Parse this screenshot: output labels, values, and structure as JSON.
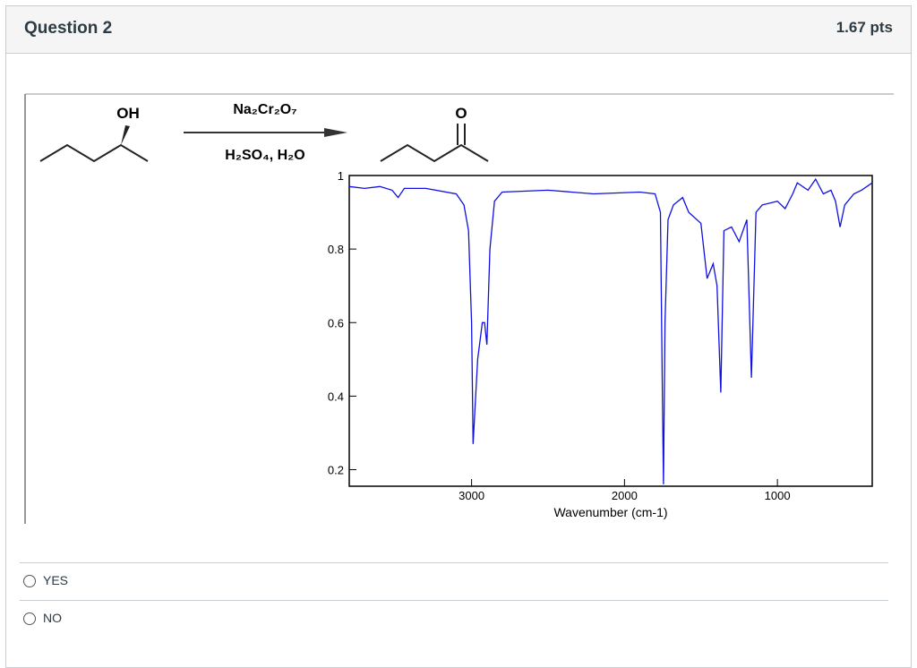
{
  "header": {
    "title": "Question 2",
    "points": "1.67 pts"
  },
  "reaction": {
    "reactant_label": "OH",
    "reagent_above": "Na₂Cr₂O₇",
    "reagent_below": "H₂SO₄, H₂O",
    "product_label": "O"
  },
  "chart_data": {
    "type": "line",
    "x_label": "Wavenumber (cm-1)",
    "color": "#1010e0",
    "x": [
      3800,
      3700,
      3600,
      3520,
      3480,
      3440,
      3300,
      3100,
      3050,
      3020,
      3000,
      2990,
      2960,
      2930,
      2915,
      2900,
      2880,
      2850,
      2800,
      2500,
      2200,
      1900,
      1800,
      1765,
      1752,
      1745,
      1735,
      1715,
      1680,
      1620,
      1580,
      1500,
      1460,
      1420,
      1395,
      1370,
      1350,
      1300,
      1250,
      1200,
      1170,
      1140,
      1100,
      1000,
      950,
      900,
      870,
      800,
      750,
      700,
      650,
      620,
      590,
      560,
      500,
      450,
      380
    ],
    "values": [
      0.97,
      0.965,
      0.97,
      0.96,
      0.94,
      0.965,
      0.965,
      0.95,
      0.92,
      0.85,
      0.6,
      0.27,
      0.5,
      0.6,
      0.6,
      0.54,
      0.8,
      0.93,
      0.955,
      0.96,
      0.95,
      0.955,
      0.95,
      0.9,
      0.4,
      0.16,
      0.6,
      0.88,
      0.92,
      0.94,
      0.9,
      0.87,
      0.72,
      0.76,
      0.7,
      0.41,
      0.85,
      0.86,
      0.82,
      0.88,
      0.45,
      0.9,
      0.92,
      0.93,
      0.91,
      0.95,
      0.98,
      0.96,
      0.99,
      0.95,
      0.96,
      0.93,
      0.86,
      0.92,
      0.95,
      0.96,
      0.98
    ],
    "xlim": [
      3800,
      380
    ],
    "ylim": [
      0.155,
      1
    ],
    "xticks": [
      3000,
      2000,
      1000
    ],
    "yticks": [
      0.2,
      0.4,
      0.6,
      0.8,
      1
    ]
  },
  "options": [
    {
      "label": "YES"
    },
    {
      "label": "NO"
    }
  ]
}
